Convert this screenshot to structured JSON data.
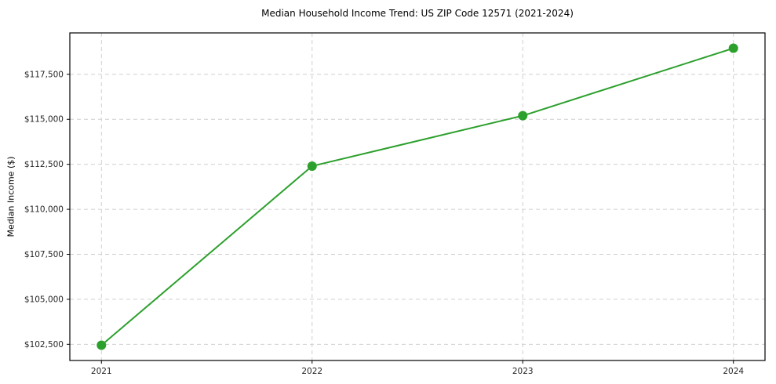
{
  "chart_data": {
    "type": "line",
    "title": "Median Household Income Trend: US ZIP Code 12571 (2021-2024)",
    "xlabel": "",
    "ylabel": "Median Income ($)",
    "x": [
      2021,
      2022,
      2023,
      2024
    ],
    "series": [
      {
        "name": "Median Household Income",
        "values": [
          102450,
          112400,
          115200,
          118950
        ]
      }
    ],
    "yticks": [
      102500,
      105000,
      107500,
      110000,
      112500,
      115000,
      117500
    ],
    "ylim": [
      101600,
      119800
    ],
    "xlim": [
      2020.85,
      2024.15
    ],
    "grid": true,
    "legend": "none",
    "colors": {
      "line": "#2ca02c",
      "marker": "#2ca02c",
      "grid": "#cfcfcf",
      "axis": "#000000",
      "tick_text": "#262626"
    }
  }
}
